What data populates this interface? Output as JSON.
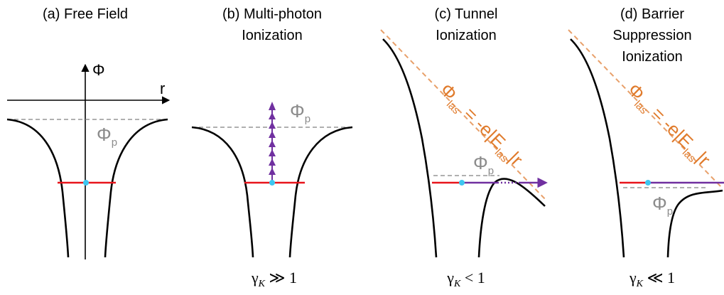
{
  "panels": [
    {
      "title_line1": "(a) Free Field",
      "title_line2": "",
      "title_line3": "",
      "gamma": ""
    },
    {
      "title_line1": "(b) Multi-photon",
      "title_line2": "Ionization",
      "title_line3": "",
      "gamma": "γ_K ≫ 1"
    },
    {
      "title_line1": "(c) Tunnel",
      "title_line2": "Ionization",
      "title_line3": "",
      "gamma": "γ_K < 1"
    },
    {
      "title_line1": "(d) Barrier",
      "title_line2": "Suppression",
      "title_line3": "Ionization",
      "gamma": "γ_K ≪ 1"
    }
  ],
  "axis": {
    "y_label": "Φ",
    "x_label": "r"
  },
  "labels": {
    "ionization_potential_main": "Φ",
    "ionization_potential_sub": "p",
    "laser_potential_main": "Φ",
    "laser_potential_sub": "las",
    "laser_potential_eq": " = -e|E",
    "laser_potential_eq_sub": "las",
    "laser_potential_tail": "|r",
    "gamma_symbol": "γ",
    "gamma_sub": "K",
    "gamma_b_rel": " ≫ 1",
    "gamma_c_rel": " < 1",
    "gamma_d_rel": " ≪ 1"
  },
  "colors": {
    "potential_curve": "#000000",
    "bound_level": "#e8141b",
    "electron_dot": "#3ec6f0",
    "ionization_path": "#7030a0",
    "dashed_reference": "#808080",
    "laser_field_line": "#e8a06a",
    "laser_field_text": "#e07b2c",
    "phi_text": "#8c8c8c"
  }
}
